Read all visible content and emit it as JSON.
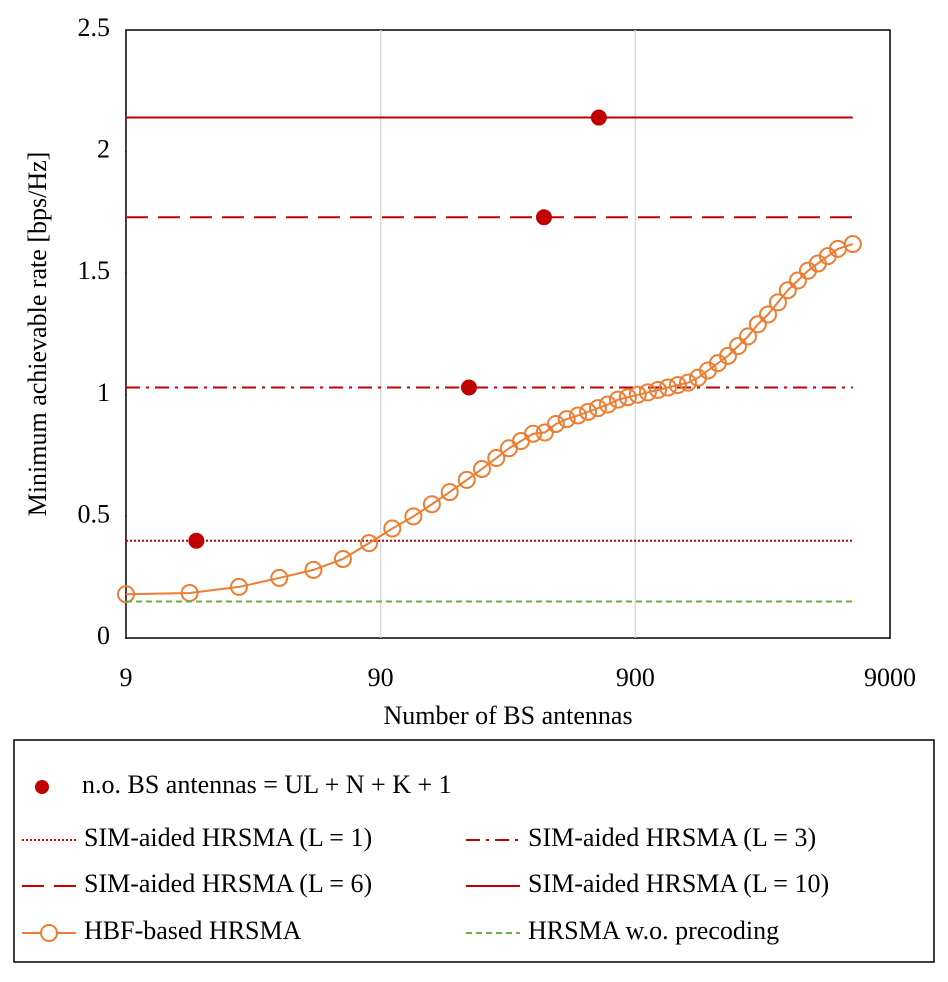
{
  "chart_data": {
    "type": "line",
    "x_label": "Number of BS antennas",
    "y_label": "Minimum achievable rate [bps/Hz]",
    "xscale": "log",
    "xlim": [
      9,
      9000
    ],
    "xticks": [
      9,
      90,
      900,
      9000
    ],
    "ylim": [
      0,
      2.5
    ],
    "yticks": [
      0,
      0.5,
      1,
      1.5,
      2,
      2.5
    ],
    "xgrid": [
      90,
      900
    ],
    "series": [
      {
        "name": "n.o. BS antennas = UL + N + K + 1",
        "color": "#c00000",
        "style": "markers",
        "x": [
          17,
          200,
          394,
          647
        ],
        "values": [
          0.4,
          1.03,
          1.73,
          2.14
        ]
      },
      {
        "name": "SIM-aided HRSMA (L = 1)",
        "color": "#c00000",
        "style": "dotted",
        "x": [
          9,
          6430
        ],
        "values": [
          0.4,
          0.4
        ]
      },
      {
        "name": "SIM-aided HRSMA (L = 3)",
        "color": "#c00000",
        "style": "dashdot",
        "x": [
          9,
          6430
        ],
        "values": [
          1.03,
          1.03
        ]
      },
      {
        "name": "SIM-aided HRSMA (L = 6)",
        "color": "#c00000",
        "style": "dashed",
        "x": [
          9,
          6430
        ],
        "values": [
          1.73,
          1.73
        ]
      },
      {
        "name": "SIM-aided HRSMA (L = 10)",
        "color": "#c00000",
        "style": "solid",
        "x": [
          9,
          6430
        ],
        "values": [
          2.14,
          2.14
        ]
      },
      {
        "name": "HBF-based HRSMA",
        "color": "#ed7d31",
        "style": "line-marker",
        "x": [
          9,
          16,
          25,
          36,
          49,
          64,
          81,
          100,
          121,
          143,
          168,
          196,
          225,
          256,
          287,
          320,
          357,
          397,
          439,
          484,
          536,
          587,
          642,
          702,
          769,
          841,
          920,
          1008,
          1105,
          1208,
          1322,
          1449,
          1586,
          1736,
          1899,
          2080,
          2277,
          2492,
          2725,
          2986,
          3267,
          3573,
          3915,
          4284,
          4689,
          5130,
          5616,
          6430
        ],
        "values": [
          0.18,
          0.185,
          0.21,
          0.247,
          0.28,
          0.325,
          0.39,
          0.45,
          0.5,
          0.55,
          0.6,
          0.65,
          0.695,
          0.74,
          0.78,
          0.81,
          0.84,
          0.845,
          0.88,
          0.9,
          0.915,
          0.93,
          0.945,
          0.96,
          0.98,
          0.99,
          1.0,
          1.01,
          1.02,
          1.03,
          1.04,
          1.05,
          1.07,
          1.1,
          1.13,
          1.16,
          1.2,
          1.24,
          1.29,
          1.33,
          1.38,
          1.43,
          1.47,
          1.51,
          1.54,
          1.57,
          1.6,
          1.62
        ]
      },
      {
        "name": "HRSMA w.o. precoding",
        "color": "#70ad47",
        "style": "short-dashed",
        "x": [
          9,
          6430
        ],
        "values": [
          0.15,
          0.15
        ]
      }
    ]
  }
}
